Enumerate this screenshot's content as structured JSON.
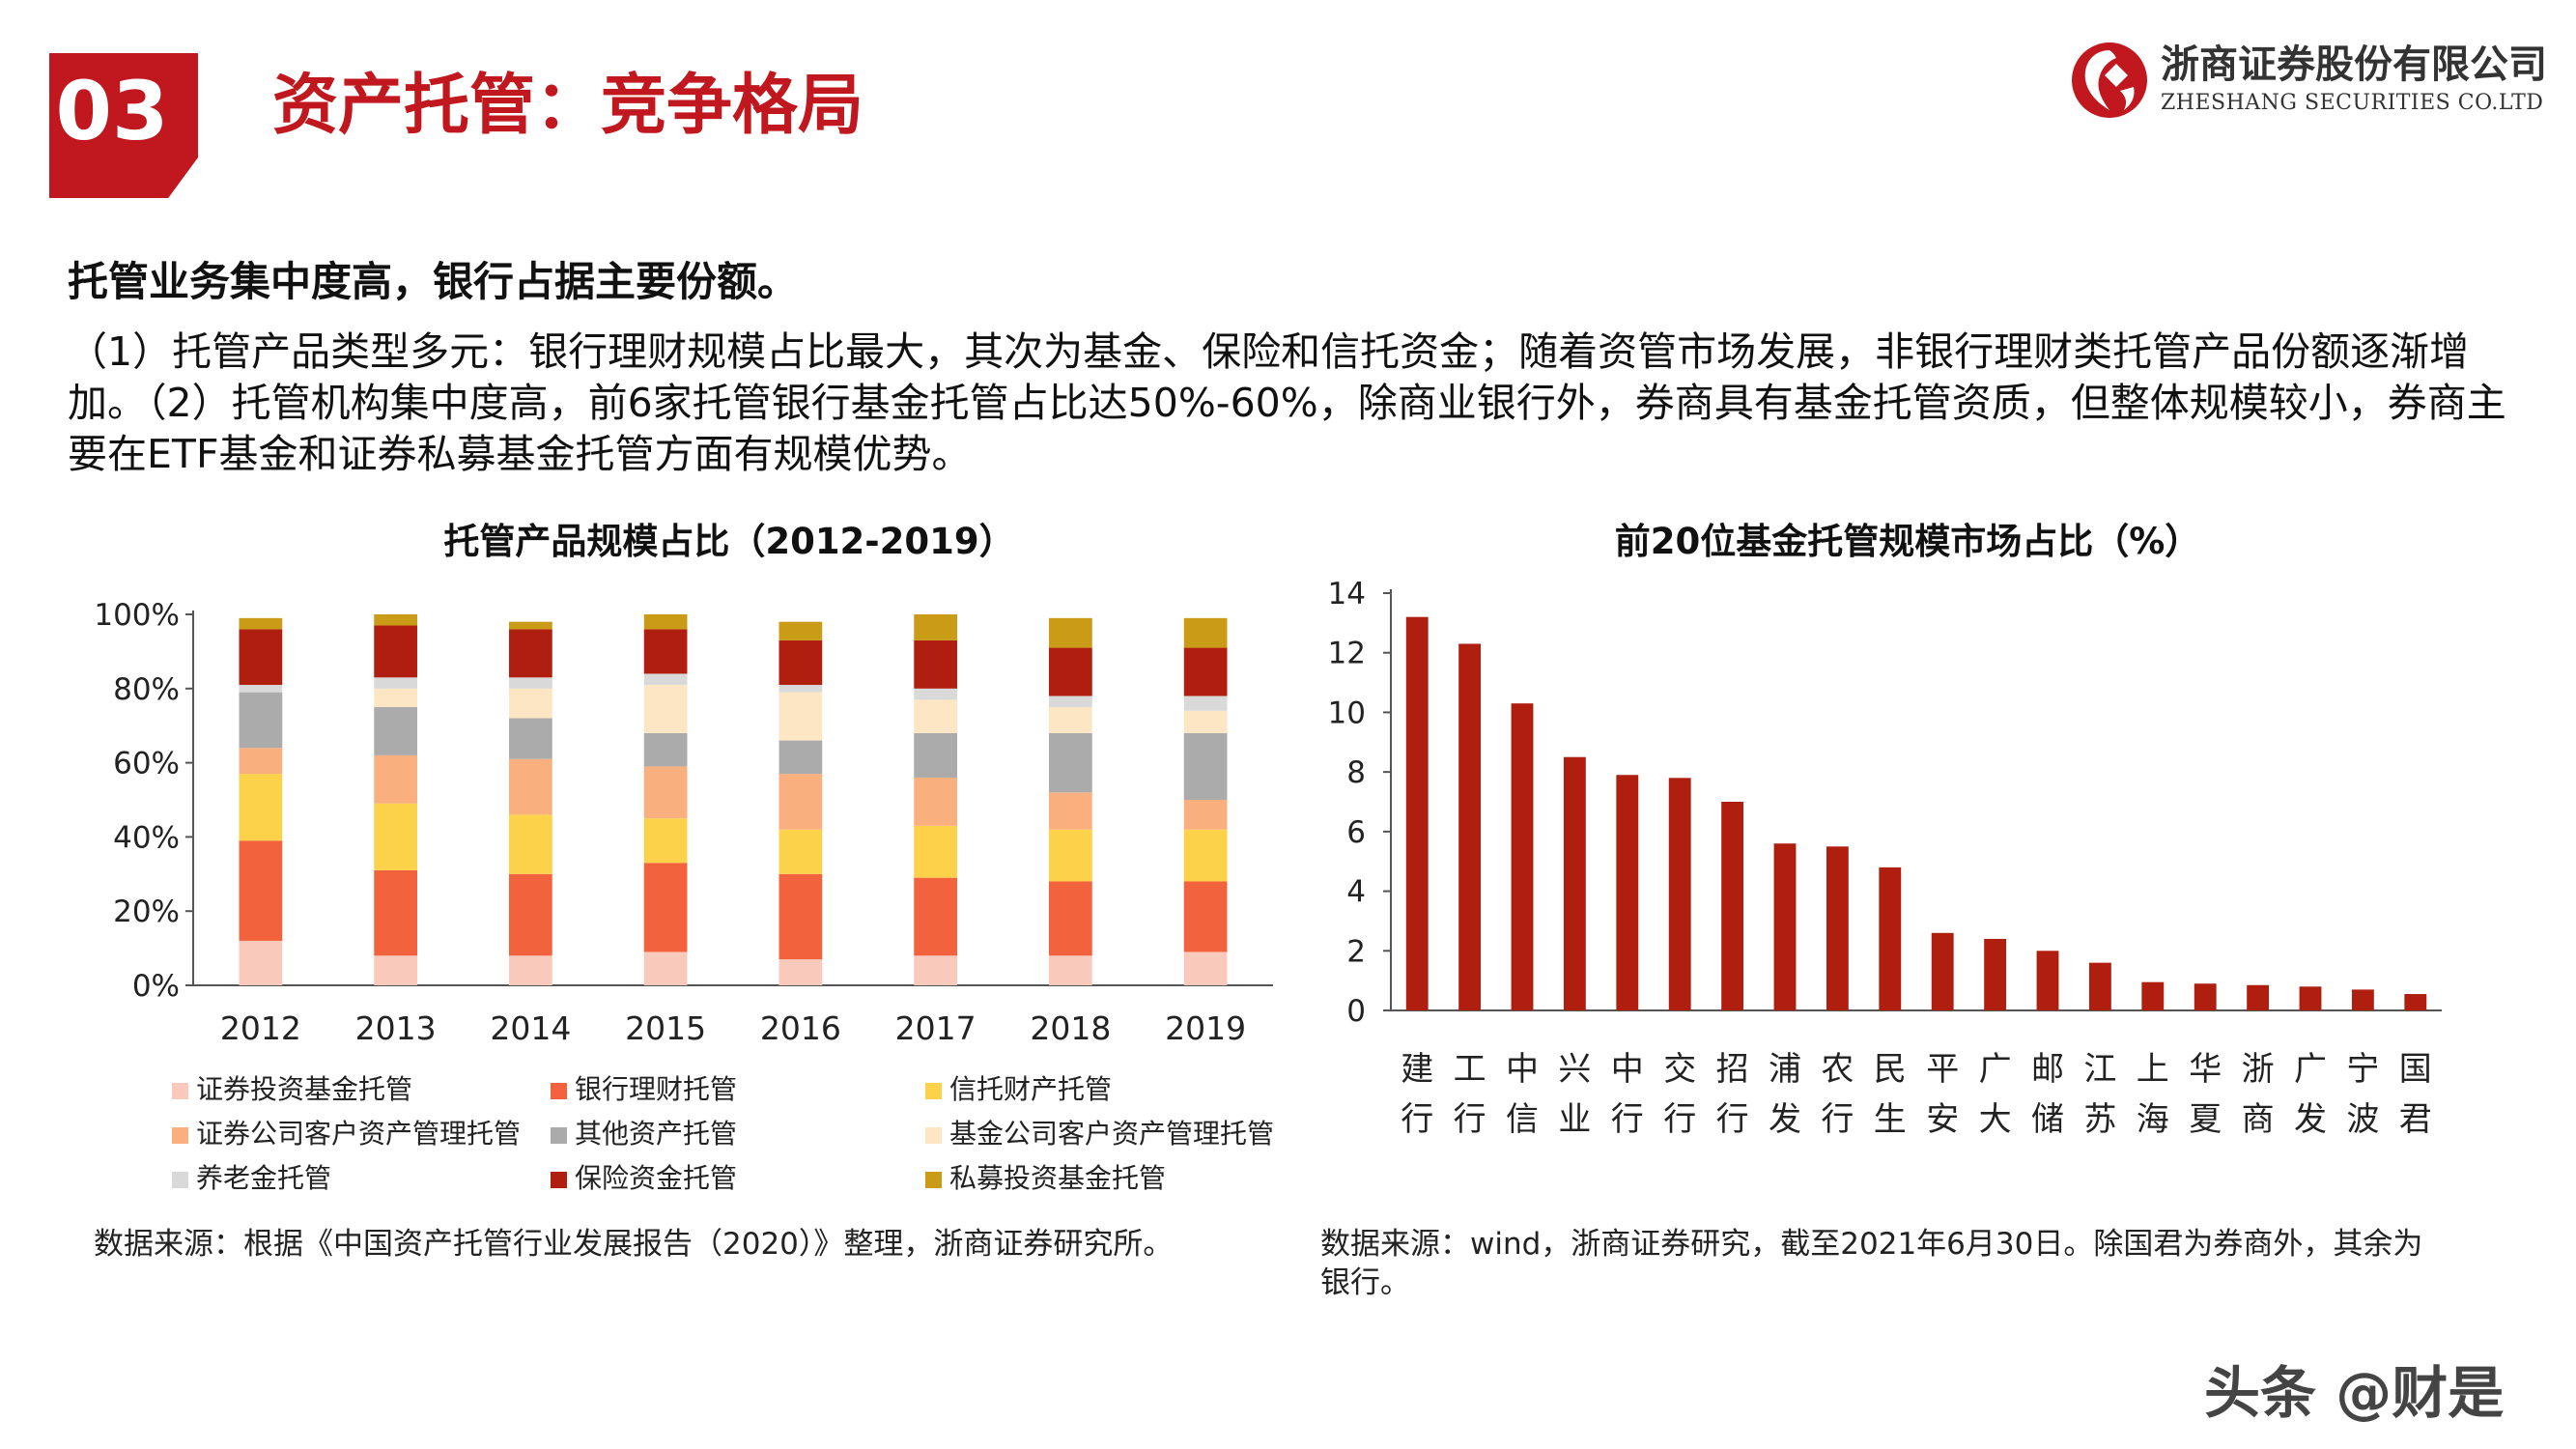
{
  "header": {
    "number": "03",
    "title": "资产托管：竞争格局",
    "logo_cn": "浙商证券股份有限公司",
    "logo_en": "ZHESHANG SECURITIES CO.LTD",
    "accent_color": "#c0181e"
  },
  "summary": {
    "headline": "托管业务集中度高，银行占据主要份额。",
    "paragraph": "（1）托管产品类型多元：银行理财规模占比最大，其次为基金、保险和信托资金；随着资管市场发展，非银行理财类托管产品份额逐渐增加。（2）托管机构集中度高，前6家托管银行基金托管占比达50%-60%，除商业银行外，券商具有基金托管资质，但整体规模较小，券商主要在ETF基金和证券私募基金托管方面有规模优势。"
  },
  "chart_data": [
    {
      "type": "bar",
      "stacked": true,
      "title": "托管产品规模占比（2012-2019）",
      "categories": [
        "2012",
        "2013",
        "2014",
        "2015",
        "2016",
        "2017",
        "2018",
        "2019"
      ],
      "y_ticks": [
        "0%",
        "20%",
        "40%",
        "60%",
        "80%",
        "100%"
      ],
      "ylim": [
        0,
        100
      ],
      "legend_position": "bottom",
      "series": [
        {
          "name": "证券投资基金托管",
          "color": "#f9c9bc",
          "values": [
            12,
            8,
            8,
            9,
            7,
            8,
            8,
            9
          ]
        },
        {
          "name": "银行理财托管",
          "color": "#f2623c",
          "values": [
            27,
            23,
            22,
            24,
            23,
            21,
            20,
            19
          ]
        },
        {
          "name": "信托财产托管",
          "color": "#fbd249",
          "values": [
            18,
            18,
            16,
            12,
            12,
            14,
            14,
            14
          ]
        },
        {
          "name": "证券公司客户资产管理托管",
          "color": "#f9b07e",
          "values": [
            7,
            13,
            15,
            14,
            15,
            13,
            10,
            8
          ]
        },
        {
          "name": "其他资产托管",
          "color": "#ababab",
          "values": [
            15,
            13,
            11,
            9,
            9,
            12,
            16,
            18
          ]
        },
        {
          "name": "基金公司客户资产管理托管",
          "color": "#fde6c4",
          "values": [
            0,
            5,
            8,
            13,
            13,
            9,
            7,
            6
          ]
        },
        {
          "name": "养老金托管",
          "color": "#d9d9d9",
          "values": [
            2,
            3,
            3,
            3,
            2,
            3,
            3,
            4
          ]
        },
        {
          "name": "保险资金托管",
          "color": "#b01e10",
          "values": [
            15,
            14,
            13,
            12,
            12,
            13,
            13,
            13
          ]
        },
        {
          "name": "私募投资基金托管",
          "color": "#c99b16",
          "values": [
            3,
            3,
            2,
            4,
            5,
            7,
            8,
            8
          ]
        }
      ],
      "source": "数据来源：根据《中国资产托管行业发展报告（2020）》整理，浙商证券研究所。"
    },
    {
      "type": "bar",
      "title": "前20位基金托管规模市场占比（%）",
      "categories": [
        "建行",
        "工行",
        "中信",
        "兴业",
        "中行",
        "交行",
        "招行",
        "浦发",
        "农行",
        "民生",
        "平安",
        "广大",
        "邮储",
        "江苏",
        "上海",
        "华夏",
        "浙商",
        "广发",
        "宁波",
        "国君"
      ],
      "values": [
        13.2,
        12.3,
        10.3,
        8.5,
        7.9,
        7.8,
        7.0,
        5.6,
        5.5,
        4.8,
        2.6,
        2.4,
        2.0,
        1.6,
        0.95,
        0.9,
        0.85,
        0.8,
        0.7,
        0.55
      ],
      "y_ticks": [
        "0",
        "2",
        "4",
        "6",
        "8",
        "10",
        "12",
        "14"
      ],
      "ylim": [
        0,
        14
      ],
      "bar_color": "#b01e10",
      "source": "数据来源：wind，浙商证券研究，截至2021年6月30日。除国君为券商外，其余为银行。"
    }
  ],
  "watermark": "头条 @财是"
}
